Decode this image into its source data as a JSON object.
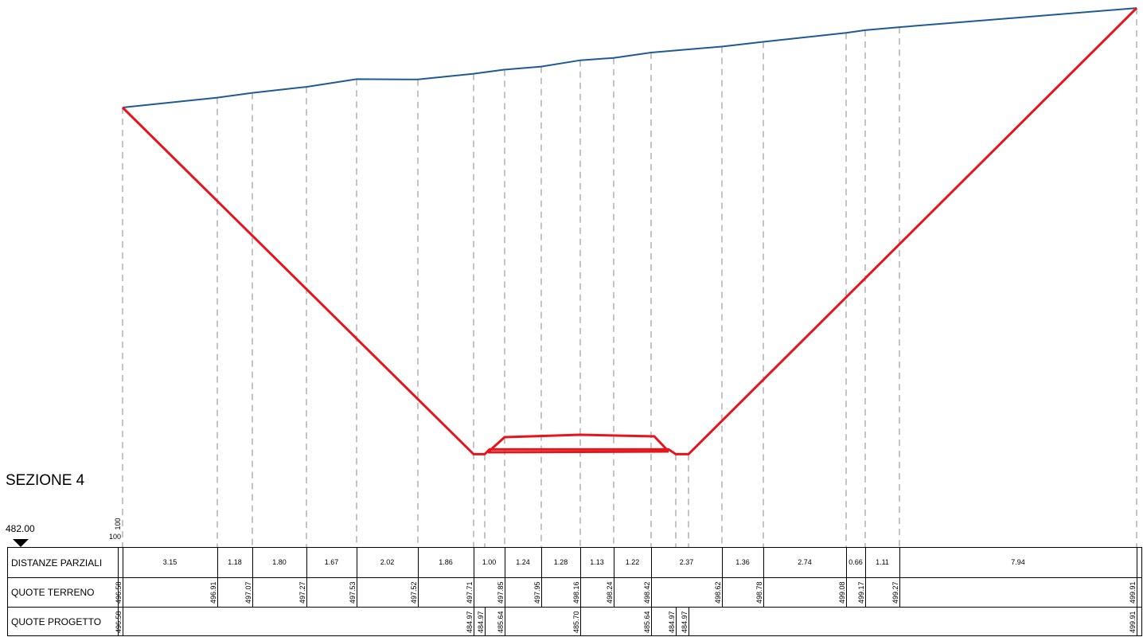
{
  "section_title": "SEZIONE 4",
  "datum": "482.00",
  "scales": {
    "vertical": "100",
    "horizontal": "100"
  },
  "rows": {
    "distanze": "DISTANZE PARZIALI",
    "terreno": "QUOTE TERRENO",
    "progetto": "QUOTE PROGETTO"
  },
  "colors": {
    "terrain": "#1f5a96",
    "project": "#e8141c",
    "grid": "#000000"
  },
  "stations": [
    {
      "id": "s0",
      "terreno": "496.58",
      "progetto": "496.58"
    },
    {
      "id": "s1",
      "terreno": "496.91",
      "progetto": ""
    },
    {
      "id": "s2",
      "terreno": "497.07",
      "progetto": ""
    },
    {
      "id": "s3",
      "terreno": "497.27",
      "progetto": ""
    },
    {
      "id": "s4",
      "terreno": "497.53",
      "progetto": ""
    },
    {
      "id": "s5",
      "terreno": "497.52",
      "progetto": ""
    },
    {
      "id": "s6",
      "terreno": "497.71",
      "progetto": "484.97"
    },
    {
      "id": "s6b",
      "terreno": "",
      "progetto": "484.97"
    },
    {
      "id": "s7",
      "terreno": "497.85",
      "progetto": "485.64"
    },
    {
      "id": "s8",
      "terreno": "497.95",
      "progetto": ""
    },
    {
      "id": "s9",
      "terreno": "498.16",
      "progetto": "485.70"
    },
    {
      "id": "s10",
      "terreno": "498.24",
      "progetto": ""
    },
    {
      "id": "s11",
      "terreno": "498.42",
      "progetto": "485.64"
    },
    {
      "id": "s11b",
      "terreno": "",
      "progetto": "484.97"
    },
    {
      "id": "s11c",
      "terreno": "",
      "progetto": "484.97"
    },
    {
      "id": "s12",
      "terreno": "498.62",
      "progetto": ""
    },
    {
      "id": "s13",
      "terreno": "498.78",
      "progetto": ""
    },
    {
      "id": "s14",
      "terreno": "499.08",
      "progetto": ""
    },
    {
      "id": "s15",
      "terreno": "499.17",
      "progetto": ""
    },
    {
      "id": "s16",
      "terreno": "499.27",
      "progetto": ""
    },
    {
      "id": "s17",
      "terreno": "499.91",
      "progetto": "499.91"
    }
  ],
  "distances": [
    "3.15",
    "1.18",
    "1.80",
    "1.67",
    "2.02",
    "1.86",
    "1.00",
    "1.24",
    "1.28",
    "1.13",
    "1.22",
    "2.37",
    "1.36",
    "2.74",
    "0.66",
    "1.11",
    "7.94"
  ]
}
